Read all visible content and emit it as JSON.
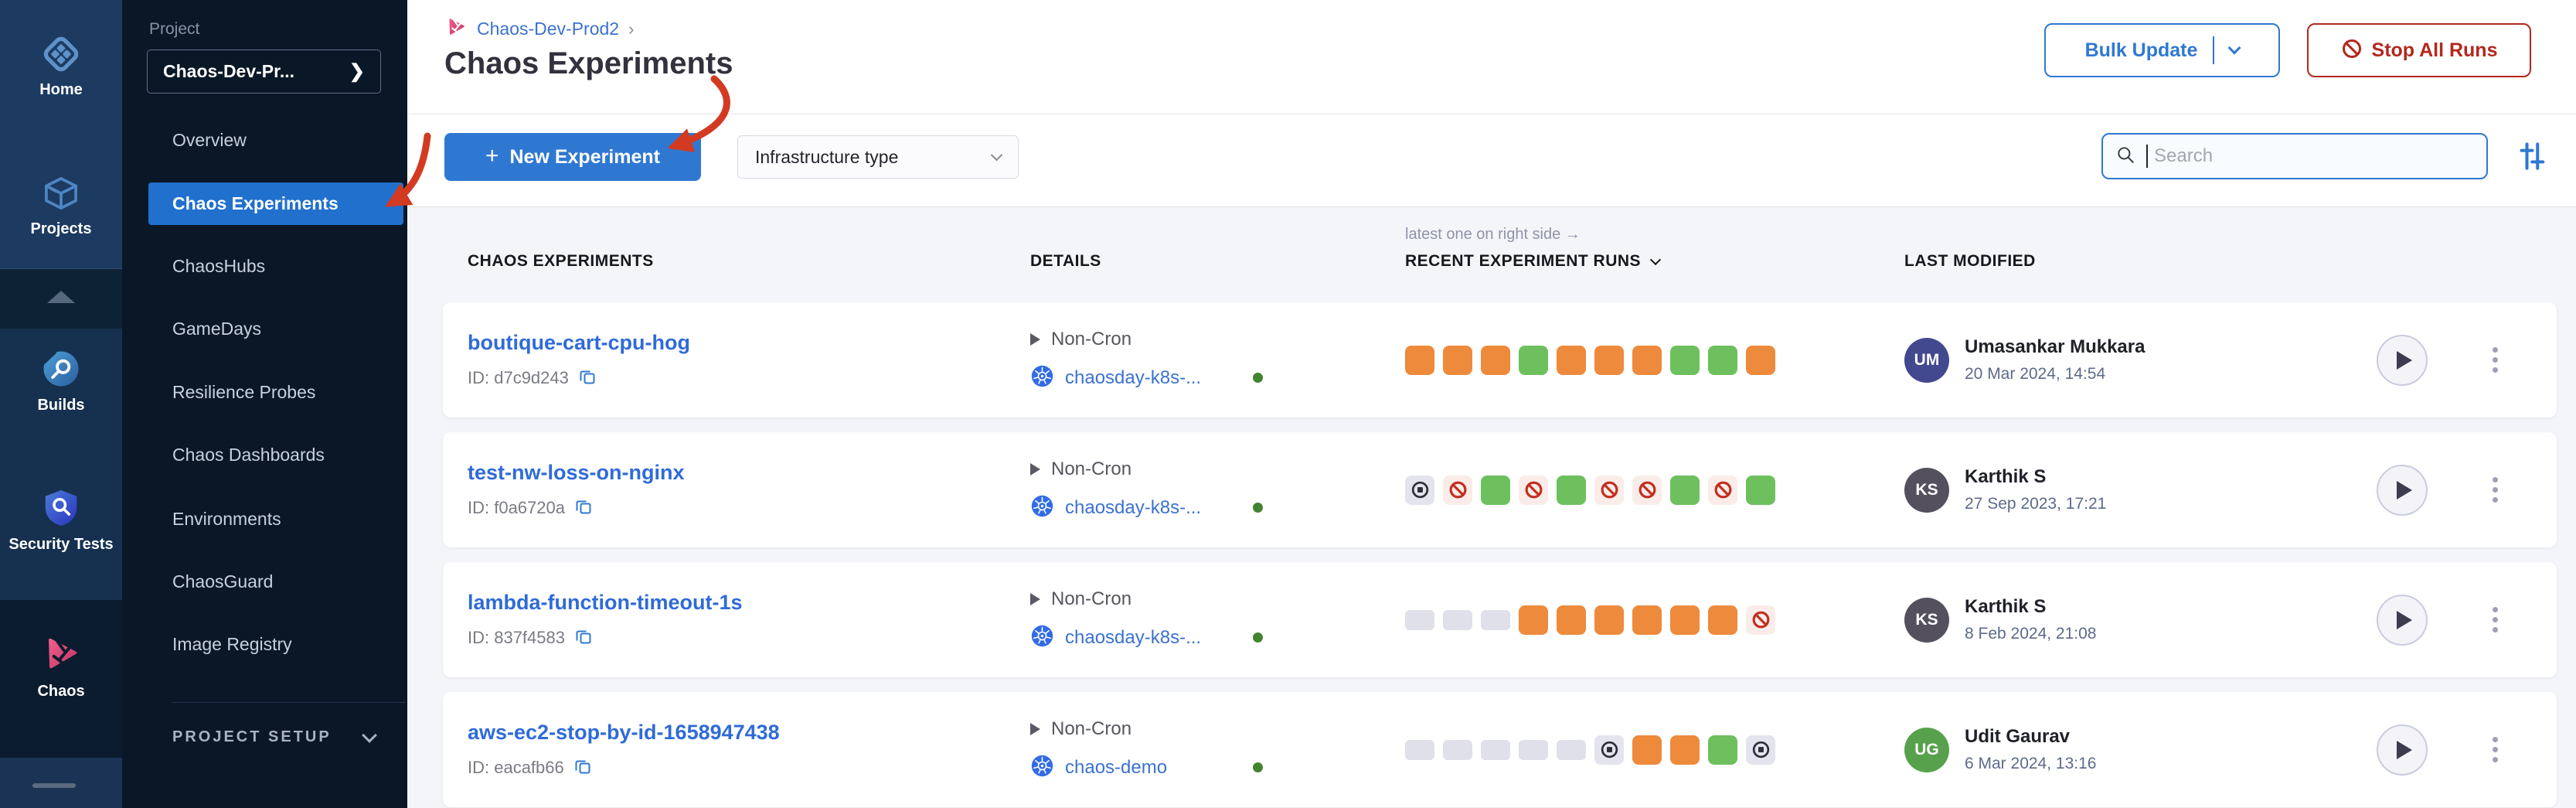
{
  "colors": {
    "accent_blue": "#2F78D2",
    "danger_red": "#B3281D",
    "run_orange": "#EE8A3C",
    "run_green": "#6EC05F",
    "run_empty": "#DFE0EA",
    "annotation_red": "#D23B22"
  },
  "module_rail": {
    "top": [
      {
        "label": "Home",
        "icon": "home-icon"
      },
      {
        "label": "Projects",
        "icon": "projects-icon"
      }
    ],
    "middle": [
      {
        "label": "Builds",
        "icon": "builds-icon"
      },
      {
        "label": "Security Tests",
        "icon": "security-tests-icon"
      }
    ],
    "selected_module": {
      "label": "Chaos",
      "icon": "chaos-icon"
    }
  },
  "project_nav": {
    "section_label": "Project",
    "project_selector": "Chaos-Dev-Pr...",
    "items": [
      "Overview",
      "Chaos Experiments",
      "ChaosHubs",
      "GameDays",
      "Resilience Probes",
      "Chaos Dashboards",
      "Environments",
      "ChaosGuard",
      "Image Registry"
    ],
    "selected_item": "Chaos Experiments",
    "footer_label": "PROJECT SETUP"
  },
  "header": {
    "breadcrumb": "Chaos-Dev-Prod2",
    "breadcrumb_sep": "›",
    "title": "Chaos Experiments",
    "bulk_update_label": "Bulk Update",
    "stop_all_runs_label": "Stop All Runs"
  },
  "toolbar": {
    "new_experiment_plus": "+",
    "new_experiment_label": "New Experiment",
    "infrastructure_filter_label": "Infrastructure type",
    "search_placeholder": "Search"
  },
  "table": {
    "runs_hint": "latest one on right side →",
    "columns": [
      "CHAOS EXPERIMENTS",
      "DETAILS",
      "RECENT EXPERIMENT RUNS",
      "LAST MODIFIED"
    ],
    "rows": [
      {
        "name": "boutique-cart-cpu-hog",
        "id": "ID: d7c9d243",
        "schedule": "Non-Cron",
        "infra": "chaosday-k8s-...",
        "infra_status": "active",
        "runs": [
          "orange",
          "orange",
          "orange",
          "green",
          "orange",
          "orange",
          "orange",
          "green",
          "green",
          "orange"
        ],
        "initials": "UM",
        "avatar_color": "#42498F",
        "user": "Umasankar Mukkara",
        "modified": "20 Mar 2024, 14:54"
      },
      {
        "name": "test-nw-loss-on-nginx",
        "id": "ID: f0a6720a",
        "schedule": "Non-Cron",
        "infra": "chaosday-k8s-...",
        "infra_status": "active",
        "runs": [
          "stopped",
          "failed",
          "green",
          "failed",
          "green",
          "failed",
          "failed",
          "green",
          "failed",
          "green"
        ],
        "initials": "KS",
        "avatar_color": "#54505E",
        "user": "Karthik S",
        "modified": "27 Sep 2023, 17:21"
      },
      {
        "name": "lambda-function-timeout-1s",
        "id": "ID: 837f4583",
        "schedule": "Non-Cron",
        "infra": "chaosday-k8s-...",
        "infra_status": "active",
        "runs": [
          "empty",
          "empty",
          "empty",
          "orange",
          "orange",
          "orange",
          "orange",
          "orange",
          "orange",
          "failed"
        ],
        "initials": "KS",
        "avatar_color": "#54505E",
        "user": "Karthik S",
        "modified": "8 Feb 2024, 21:08"
      },
      {
        "name": "aws-ec2-stop-by-id-1658947438",
        "id": "ID: eacafb66",
        "schedule": "Non-Cron",
        "infra": "chaos-demo",
        "infra_status": "active",
        "runs": [
          "empty",
          "empty",
          "empty",
          "empty",
          "empty",
          "stopped",
          "orange",
          "orange",
          "green",
          "stopped"
        ],
        "initials": "UG",
        "avatar_color": "#57A14C",
        "user": "Udit Gaurav",
        "modified": "6 Mar 2024, 13:16"
      }
    ]
  }
}
